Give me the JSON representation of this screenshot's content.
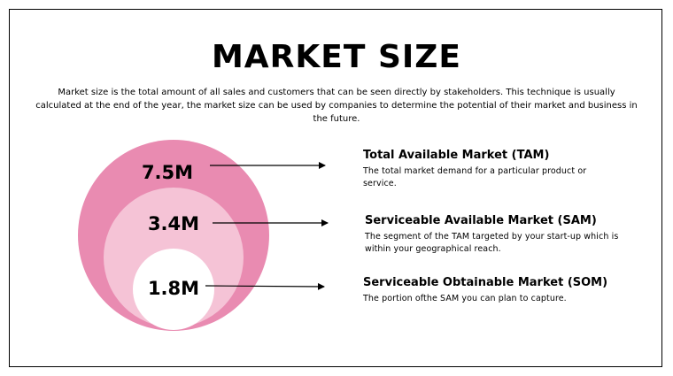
{
  "title": "MARKET SIZE",
  "intro": "Market size is the total amount of all sales and customers that can be seen directly by stakeholders. This technique is usually calculated at the end of the year, the market size can be used by companies to determine the potential of their market and business in the future.",
  "colors": {
    "outer": "#e98bb1",
    "middle": "#f5c3d6",
    "inner": "#ffffff",
    "text": "#000000"
  },
  "segments": [
    {
      "value": "7.5M",
      "title": "Total Available Market (TAM)",
      "description": "The total market demand for a particular product or service."
    },
    {
      "value": "3.4M",
      "title": "Serviceable Available Market (SAM)",
      "description": "The segment of the TAM targeted by your start-up which is within your geographical reach."
    },
    {
      "value": "1.8M",
      "title": "Serviceable Obtainable  Market (SOM)",
      "description": "The portion ofthe SAM you can plan to capture."
    }
  ]
}
